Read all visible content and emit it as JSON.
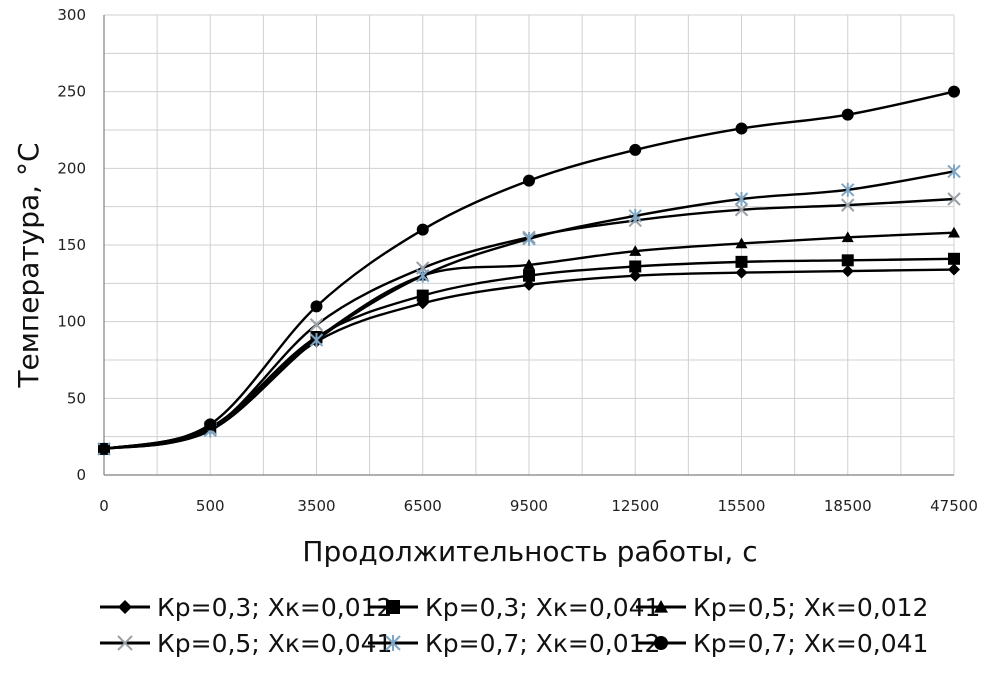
{
  "chart_data": {
    "type": "line",
    "title": "",
    "xlabel": "Продолжительность работы, с",
    "ylabel": "Температура, °С",
    "categories": [
      "0",
      "500",
      "3500",
      "6500",
      "9500",
      "12500",
      "15500",
      "18500",
      "47500"
    ],
    "yticks": [
      "0",
      "50",
      "100",
      "150",
      "200",
      "250",
      "300"
    ],
    "ylim": [
      0,
      300
    ],
    "grid": true,
    "legend_position": "bottom",
    "series": [
      {
        "name": "Кр=0,3; Хк=0,012",
        "marker": "diamond",
        "color": "#000000",
        "values": [
          17,
          31,
          87,
          112,
          124,
          130,
          132,
          133,
          134
        ]
      },
      {
        "name": "Кр=0,3; Хк=0,041",
        "marker": "square",
        "color": "#000000",
        "values": [
          17,
          31,
          90,
          117,
          130,
          136,
          139,
          140,
          141
        ]
      },
      {
        "name": "Кр=0,5; Хк=0,012",
        "marker": "triangle",
        "color": "#000000",
        "values": [
          17,
          31,
          89,
          130,
          137,
          146,
          151,
          155,
          158
        ]
      },
      {
        "name": "Кр=0,5; Хк=0,041",
        "marker": "x",
        "color": "#000000",
        "values": [
          17,
          30,
          98,
          135,
          155,
          166,
          173,
          176,
          180
        ]
      },
      {
        "name": "Кр=0,7; Хк=0,012",
        "marker": "star",
        "color": "#000000",
        "values": [
          17,
          29,
          88,
          130,
          154,
          169,
          180,
          186,
          198
        ]
      },
      {
        "name": "Кр=0,7; Хк=0,041",
        "marker": "circle",
        "color": "#000000",
        "values": [
          17,
          33,
          110,
          160,
          192,
          212,
          226,
          235,
          250
        ]
      }
    ]
  }
}
